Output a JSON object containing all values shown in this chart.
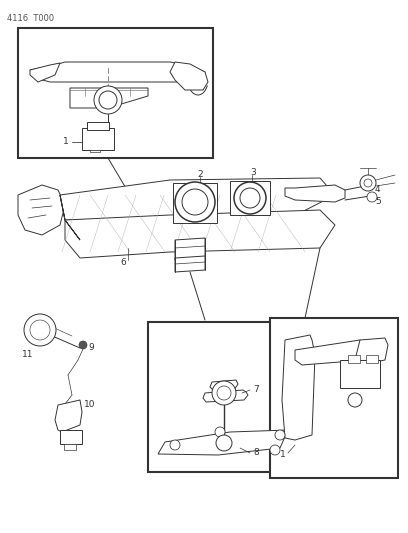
{
  "bg_color": "#ffffff",
  "line_color": "#333333",
  "label_color": "#222222",
  "fig_width": 4.08,
  "fig_height": 5.33,
  "dpi": 100,
  "header_text": "4116  T000",
  "lw": 0.7
}
